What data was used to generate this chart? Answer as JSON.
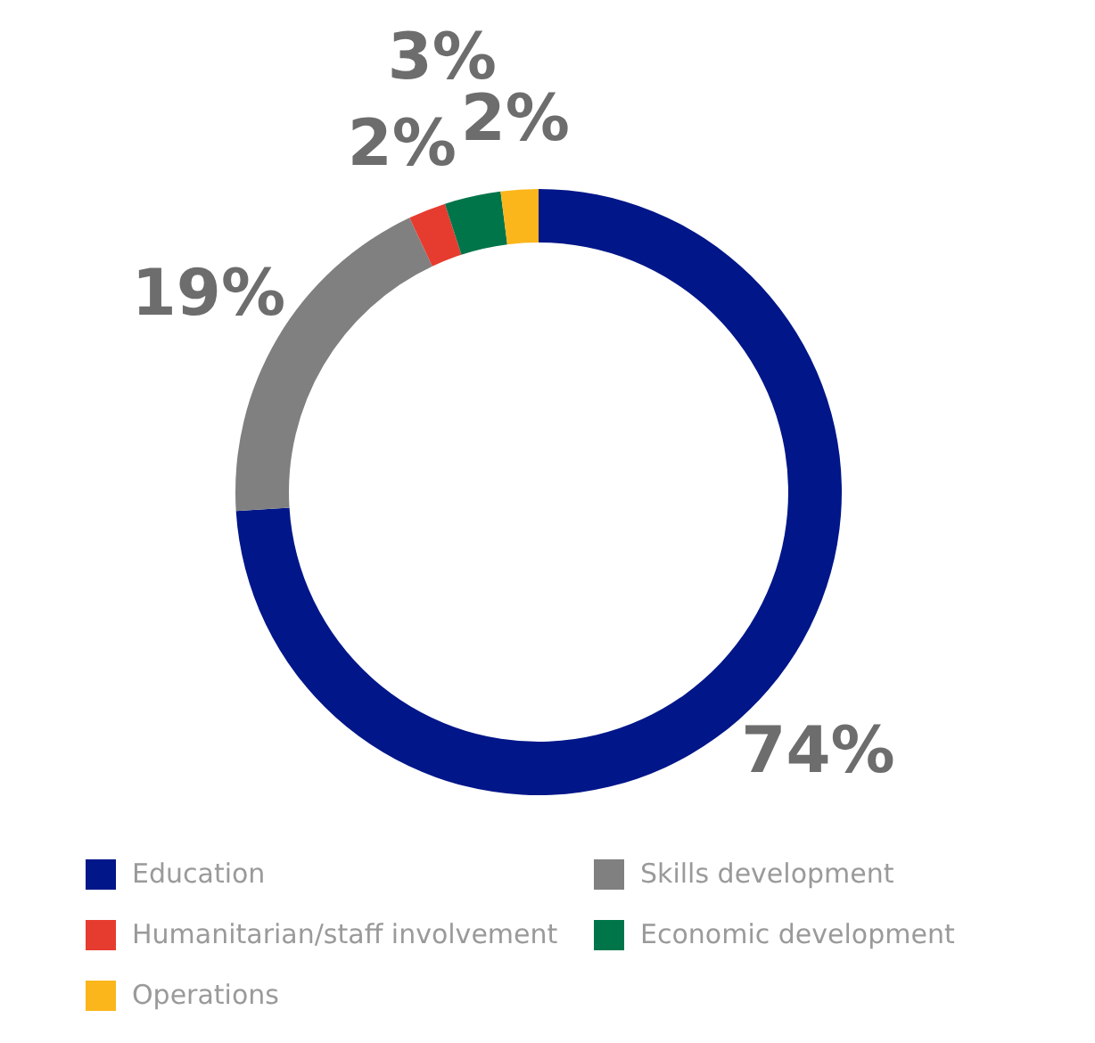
{
  "chart_data": {
    "type": "donut",
    "categories": [
      "Education",
      "Skills development",
      "Humanitarian/staff involvement",
      "Economic development",
      "Operations"
    ],
    "values": [
      74,
      19,
      2,
      3,
      2
    ],
    "colors": [
      "#001689",
      "#808080",
      "#e63c2f",
      "#00754a",
      "#fbb61b"
    ],
    "value_labels": [
      "74%",
      "19%",
      "2%",
      "3%",
      "2%"
    ],
    "legend": "bottom"
  }
}
